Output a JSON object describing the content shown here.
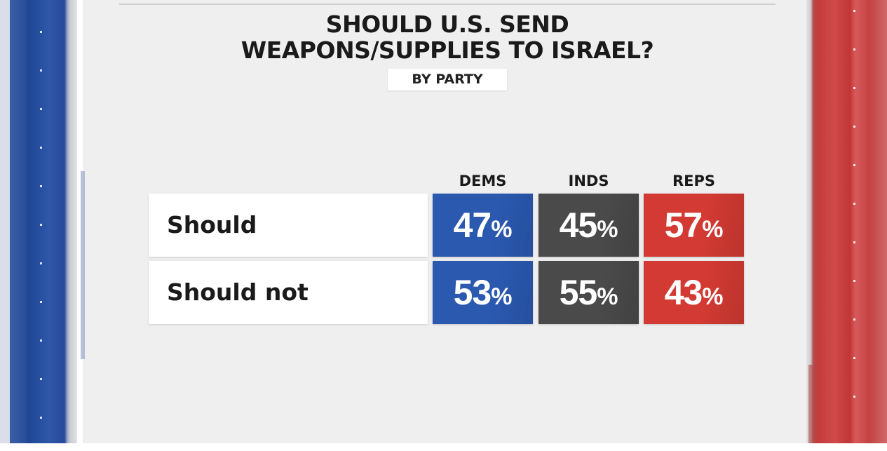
{
  "title_line1": "SHOULD U.S. SEND",
  "title_line2": "WEAPONS/SUPPLIES TO ISRAEL?",
  "subtitle": "BY PARTY",
  "colors": {
    "dems": "#2b59b0",
    "inds": "#4a4a4a",
    "reps": "#d23a33"
  },
  "chart_data": {
    "type": "table",
    "columns": [
      "DEMS",
      "INDS",
      "REPS"
    ],
    "rows": [
      {
        "label": "Should",
        "values": [
          "47",
          "45",
          "57"
        ]
      },
      {
        "label": "Should not",
        "values": [
          "53",
          "55",
          "43"
        ]
      }
    ],
    "unit": "%"
  }
}
